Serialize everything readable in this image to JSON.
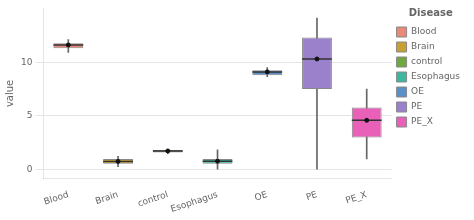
{
  "chart_data": {
    "type": "box",
    "categories": [
      "Blood",
      "Brain",
      "control",
      "Esophagus",
      "OE",
      "PE",
      "PE_X"
    ],
    "colors": [
      "#E8897A",
      "#C8A030",
      "#70A840",
      "#3DB8A0",
      "#5A90C8",
      "#9B80CC",
      "#E860B8"
    ],
    "q1": [
      11.3,
      0.55,
      1.6,
      0.55,
      8.78,
      7.5,
      3.0
    ],
    "median": [
      11.6,
      0.78,
      1.75,
      0.8,
      9.1,
      10.3,
      4.6
    ],
    "q3": [
      11.75,
      1.0,
      1.85,
      1.0,
      9.25,
      12.3,
      5.8
    ],
    "whislo": [
      10.9,
      0.28,
      1.5,
      0.05,
      8.65,
      0.05,
      1.0
    ],
    "whishi": [
      12.1,
      1.25,
      1.9,
      1.85,
      9.5,
      14.1,
      7.5
    ],
    "mean": [
      11.6,
      0.78,
      1.75,
      0.8,
      9.1,
      10.3,
      4.6
    ],
    "ylabel": "value",
    "ylim": [
      -0.8,
      15.0
    ],
    "yticks": [
      0,
      5,
      10
    ],
    "grid": true,
    "legend": "right",
    "legend_title": "Disease"
  }
}
